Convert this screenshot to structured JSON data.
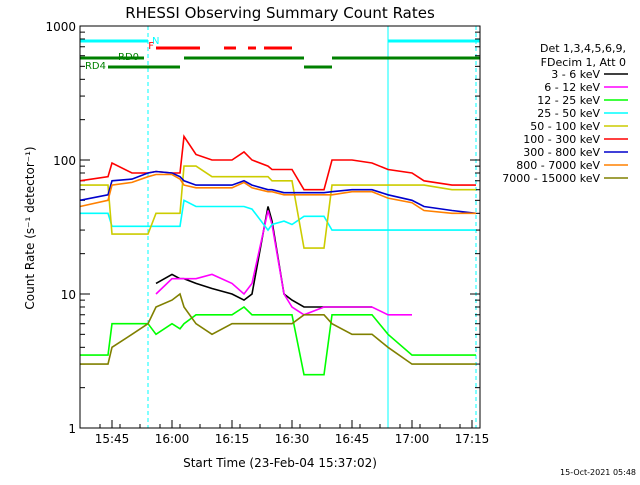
{
  "chart_data": {
    "type": "line",
    "title": "RHESSI Observing Summary Count Rates",
    "xlabel": "Start Time (23-Feb-04 15:37:02)",
    "ylabel": "Count Rate (s⁻¹ detector⁻¹)",
    "y_scale": "log",
    "ylim": [
      1,
      1000
    ],
    "xlim": [
      "15:37",
      "17:17"
    ],
    "x_ticks": [
      "15:45",
      "16:00",
      "16:15",
      "16:30",
      "16:45",
      "17:00",
      "17:15"
    ],
    "y_ticks": [
      "1",
      "10",
      "100",
      "1000"
    ],
    "legend": {
      "header": [
        "Det 1,3,4,5,6,9,",
        "FDecim 1, Att 0"
      ],
      "position": "right"
    },
    "flags": [
      {
        "label": "N",
        "color": "#00ffff",
        "segments": [
          [
            "15:37",
            "15:54"
          ],
          [
            "16:54",
            "17:17"
          ]
        ]
      },
      {
        "label": "F",
        "color": "#ff0000",
        "segments": [
          [
            "15:56",
            "16:07"
          ],
          [
            "16:13",
            "16:16"
          ],
          [
            "16:19",
            "16:21"
          ],
          [
            "16:23",
            "16:30"
          ]
        ]
      },
      {
        "label": "RD0",
        "color": "#008000",
        "segments": [
          [
            "15:37",
            "15:53"
          ],
          [
            "16:03",
            "16:33"
          ],
          [
            "16:40",
            "17:17"
          ]
        ]
      },
      {
        "label": "RD4",
        "color": "#008000",
        "segments": [
          [
            "15:44",
            "16:02"
          ],
          [
            "16:33",
            "16:40"
          ]
        ]
      }
    ],
    "vlines": [
      {
        "time": "15:37",
        "color": "#00ffff",
        "style": "solid"
      },
      {
        "time": "15:54",
        "color": "#00ffff",
        "style": "dashed"
      },
      {
        "time": "16:54",
        "color": "#00ffff",
        "style": "solid"
      },
      {
        "time": "17:16",
        "color": "#00ffff",
        "style": "dashed"
      }
    ],
    "x": [
      "15:37",
      "15:44",
      "15:45",
      "15:50",
      "15:54",
      "15:56",
      "16:00",
      "16:02",
      "16:03",
      "16:06",
      "16:10",
      "16:15",
      "16:18",
      "16:20",
      "16:24",
      "16:25",
      "16:28",
      "16:30",
      "16:33",
      "16:38",
      "16:40",
      "16:45",
      "16:50",
      "16:54",
      "17:00",
      "17:03",
      "17:10",
      "17:16"
    ],
    "series": [
      {
        "name": "3 - 6 keV",
        "color": "#000000",
        "values": [
          null,
          null,
          null,
          null,
          null,
          12,
          14,
          13,
          13,
          12,
          11,
          10,
          9,
          10,
          45,
          35,
          10,
          9,
          8,
          8,
          8,
          8,
          8,
          null,
          null,
          null,
          null,
          null
        ]
      },
      {
        "name": "6 - 12 keV",
        "color": "#ff00ff",
        "values": [
          null,
          null,
          null,
          null,
          null,
          10,
          13,
          13,
          13,
          13,
          14,
          12,
          10,
          12,
          42,
          33,
          10,
          8,
          7,
          8,
          8,
          8,
          8,
          7,
          7,
          null,
          null,
          null
        ]
      },
      {
        "name": "12 - 25 keV",
        "color": "#00ff00",
        "values": [
          3.5,
          3.5,
          6,
          6,
          6,
          5,
          6,
          5.5,
          6,
          7,
          7,
          7,
          8,
          7,
          7,
          7,
          7,
          7,
          2.5,
          2.5,
          7,
          7,
          7,
          5,
          3.5,
          3.5,
          3.5,
          3.5
        ]
      },
      {
        "name": "25 - 50 keV",
        "color": "#00ffff",
        "values": [
          40,
          40,
          32,
          32,
          32,
          32,
          32,
          32,
          50,
          45,
          45,
          45,
          45,
          43,
          30,
          33,
          35,
          33,
          38,
          38,
          30,
          30,
          30,
          30,
          30,
          30,
          30,
          30
        ]
      },
      {
        "name": "50 - 100 keV",
        "color": "#cccc00",
        "values": [
          65,
          65,
          28,
          28,
          28,
          40,
          40,
          40,
          90,
          90,
          75,
          75,
          75,
          75,
          75,
          70,
          70,
          70,
          22,
          22,
          65,
          65,
          65,
          65,
          65,
          65,
          60,
          60
        ]
      },
      {
        "name": "100 - 300 keV",
        "color": "#ff0000",
        "values": [
          70,
          75,
          95,
          80,
          80,
          82,
          80,
          80,
          150,
          110,
          100,
          100,
          115,
          100,
          90,
          85,
          85,
          85,
          60,
          60,
          100,
          100,
          95,
          85,
          80,
          70,
          65,
          65
        ]
      },
      {
        "name": "300 - 800 keV",
        "color": "#0000cc",
        "values": [
          50,
          55,
          70,
          72,
          80,
          82,
          80,
          75,
          70,
          65,
          65,
          65,
          70,
          65,
          60,
          60,
          57,
          57,
          57,
          57,
          58,
          60,
          60,
          55,
          50,
          45,
          42,
          40
        ]
      },
      {
        "name": "800 - 7000 keV",
        "color": "#ff8000",
        "values": [
          45,
          50,
          65,
          68,
          75,
          78,
          78,
          72,
          65,
          62,
          62,
          62,
          68,
          62,
          58,
          58,
          55,
          55,
          55,
          55,
          55,
          58,
          58,
          52,
          48,
          42,
          40,
          40
        ]
      },
      {
        "name": "7000 - 15000 keV",
        "color": "#808000",
        "values": [
          3,
          3,
          4,
          5,
          6,
          8,
          9,
          10,
          8,
          6,
          5,
          6,
          6,
          6,
          6,
          6,
          6,
          6,
          7,
          7,
          6,
          5,
          5,
          4,
          3,
          3,
          3,
          3
        ]
      }
    ]
  },
  "footer": {
    "timestamp": "15-Oct-2021 05:48"
  }
}
